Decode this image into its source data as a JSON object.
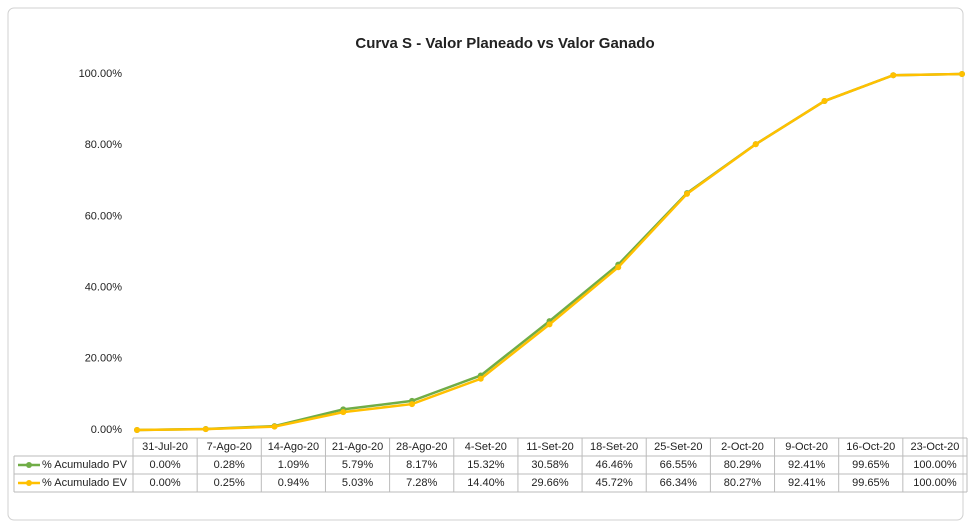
{
  "chart_data": {
    "type": "line",
    "title": "Curva S - Valor Planeado vs Valor Ganado",
    "categories": [
      "31-Jul-20",
      "7-Ago-20",
      "14-Ago-20",
      "21-Ago-20",
      "28-Ago-20",
      "4-Set-20",
      "11-Set-20",
      "18-Set-20",
      "25-Set-20",
      "2-Oct-20",
      "9-Oct-20",
      "16-Oct-20",
      "23-Oct-20"
    ],
    "series": [
      {
        "name": "% Acumulado PV",
        "color": "#70ad47",
        "values": [
          0,
          0.28,
          1.09,
          5.79,
          8.17,
          15.32,
          30.58,
          46.46,
          66.55,
          80.29,
          92.41,
          99.65,
          100
        ],
        "value_labels": [
          "0.00%",
          "0.28%",
          "1.09%",
          "5.79%",
          "8.17%",
          "15.32%",
          "30.58%",
          "46.46%",
          "66.55%",
          "80.29%",
          "92.41%",
          "99.65%",
          "100.00%"
        ]
      },
      {
        "name": "% Acumulado EV",
        "color": "#ffc000",
        "values": [
          0,
          0.25,
          0.94,
          5.03,
          7.28,
          14.4,
          29.66,
          45.72,
          66.34,
          80.27,
          92.41,
          99.65,
          100
        ],
        "value_labels": [
          "0.00%",
          "0.25%",
          "0.94%",
          "5.03%",
          "7.28%",
          "14.40%",
          "29.66%",
          "45.72%",
          "66.34%",
          "80.27%",
          "92.41%",
          "99.65%",
          "100.00%"
        ]
      }
    ],
    "ylim": [
      0,
      100
    ],
    "yticks": [
      {
        "value": 0,
        "label": "0.00%"
      },
      {
        "value": 20,
        "label": "20.00%"
      },
      {
        "value": 40,
        "label": "40.00%"
      },
      {
        "value": 60,
        "label": "60.00%"
      },
      {
        "value": 80,
        "label": "80.00%"
      },
      {
        "value": 100,
        "label": "100.00%"
      }
    ],
    "grid": false
  }
}
